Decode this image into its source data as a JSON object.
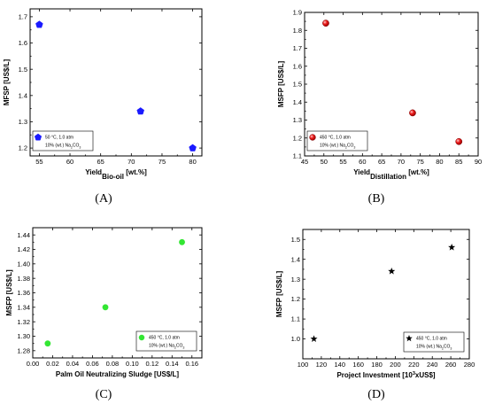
{
  "chart_data": [
    {
      "id": "A",
      "type": "scatter",
      "panel_label": "(A)",
      "ylabel": "MFSP [US$/L]",
      "xlabel_main": "Yield",
      "xlabel_sub": "Bio-oil",
      "xlabel_tail": " [wt.%]",
      "xlim": [
        53.5,
        81.5
      ],
      "ylim": [
        1.17,
        1.73
      ],
      "xticks": [
        55,
        60,
        65,
        70,
        75,
        80
      ],
      "yticks": [
        1.2,
        1.3,
        1.4,
        1.5,
        1.6,
        1.7
      ],
      "ytick_decimals": 1,
      "xtick_decimals": 0,
      "legend": [
        "50 °C, 1.0 atm",
        "10% (wt.) Na2CO3"
      ],
      "legend_position": "bottom-left",
      "marker": "pentagon",
      "color": "#1a1aff",
      "x": [
        55,
        71.5,
        80
      ],
      "y": [
        1.67,
        1.34,
        1.2
      ]
    },
    {
      "id": "B",
      "type": "scatter",
      "panel_label": "(B)",
      "ylabel": "MSFP [US$/L]",
      "xlabel_main": "Yield",
      "xlabel_sub": "Distillation",
      "xlabel_tail": " [wt.%]",
      "xlim": [
        45,
        90
      ],
      "ylim": [
        1.1,
        1.9
      ],
      "xticks": [
        45,
        50,
        55,
        60,
        65,
        70,
        75,
        80,
        85,
        90
      ],
      "yticks": [
        1.1,
        1.2,
        1.3,
        1.4,
        1.5,
        1.6,
        1.7,
        1.8,
        1.9
      ],
      "ytick_decimals": 1,
      "xtick_decimals": 0,
      "legend": [
        "450 °C, 1.0 atm",
        "10% (wt.) Na2CO3"
      ],
      "legend_position": "bottom-left",
      "marker": "sphere",
      "color": "#e01010",
      "x": [
        50.5,
        73,
        85
      ],
      "y": [
        1.84,
        1.34,
        1.18
      ]
    },
    {
      "id": "C",
      "type": "scatter",
      "panel_label": "(C)",
      "ylabel": "MSFP [US$/L]",
      "xlabel_main": "Palm Oil Neutralizing Sludge [US$/L]",
      "xlabel_sub": "",
      "xlabel_tail": "",
      "xlim": [
        0.0,
        0.17
      ],
      "ylim": [
        1.27,
        1.45
      ],
      "xticks": [
        0.0,
        0.02,
        0.04,
        0.06,
        0.08,
        0.1,
        0.12,
        0.14,
        0.16
      ],
      "yticks": [
        1.28,
        1.3,
        1.32,
        1.34,
        1.36,
        1.38,
        1.4,
        1.42,
        1.44
      ],
      "ytick_decimals": 2,
      "xtick_decimals": 2,
      "legend": [
        "450 °C, 1.0 atm",
        "10% (wt.) Na2CO3"
      ],
      "legend_position": "bottom-right",
      "marker": "circle",
      "color": "#33e633",
      "x": [
        0.015,
        0.073,
        0.15
      ],
      "y": [
        1.29,
        1.34,
        1.43
      ]
    },
    {
      "id": "D",
      "type": "scatter",
      "panel_label": "(D)",
      "ylabel": "MSFP [US$/L]",
      "xlabel_main": "Project Investment [10",
      "xlabel_sup": "3",
      "xlabel_tail": "xUS$]",
      "xlim": [
        100,
        280
      ],
      "ylim": [
        0.9,
        1.55
      ],
      "xticks": [
        100,
        120,
        140,
        160,
        180,
        200,
        220,
        240,
        260,
        280
      ],
      "yticks": [
        1.0,
        1.1,
        1.2,
        1.3,
        1.4,
        1.5
      ],
      "ytick_decimals": 1,
      "xtick_decimals": 0,
      "legend": [
        "450 °C, 1.0 atm",
        "10% (wt.) Na2CO3"
      ],
      "legend_position": "bottom-right",
      "marker": "star",
      "color": "#000000",
      "x": [
        112,
        196,
        261
      ],
      "y": [
        1.0,
        1.34,
        1.46
      ]
    }
  ]
}
